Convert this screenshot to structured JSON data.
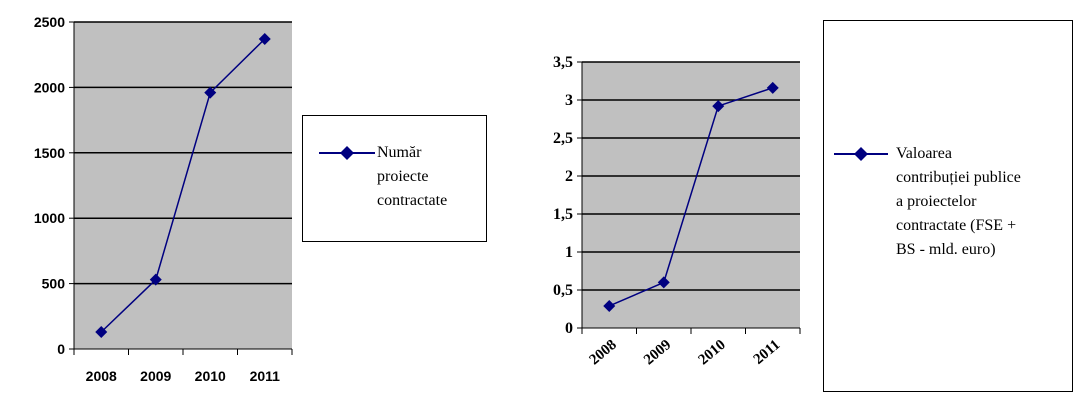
{
  "colors": {
    "plot_background": "#c0c0c0",
    "series": "#000080",
    "grid": "#000000",
    "axis": "#000000"
  },
  "chart_data": [
    {
      "type": "line",
      "title": "",
      "xlabel": "",
      "ylabel": "",
      "categories": [
        "2008",
        "2009",
        "2010",
        "2011"
      ],
      "ylim": [
        0,
        2500
      ],
      "yticks": [
        "0",
        "500",
        "1000",
        "1500",
        "2000",
        "2500"
      ],
      "grid": true,
      "legend_position": "right",
      "marker": "diamond",
      "series": [
        {
          "name": "Număr proiecte contractate",
          "values": [
            130,
            530,
            1960,
            2370
          ]
        }
      ]
    },
    {
      "type": "line",
      "title": "",
      "xlabel": "",
      "ylabel": "",
      "categories": [
        "2008",
        "2009",
        "2010",
        "2011"
      ],
      "ylim": [
        0,
        3.5
      ],
      "yticks": [
        "0",
        "0,5",
        "1",
        "1,5",
        "2",
        "2,5",
        "3",
        "3,5"
      ],
      "grid": true,
      "legend_position": "right",
      "marker": "diamond",
      "series": [
        {
          "name": "Valoarea contribuției publice a proiectelor contractate (FSE + BS - mld. euro)",
          "values": [
            0.29,
            0.6,
            2.92,
            3.16
          ]
        }
      ]
    }
  ],
  "legends": {
    "left": [
      "Număr",
      "proiecte",
      "contractate"
    ],
    "right": [
      "Valoarea",
      "contribuției publice",
      "a proiectelor",
      "contractate (FSE +",
      "BS - mld. euro)"
    ]
  }
}
